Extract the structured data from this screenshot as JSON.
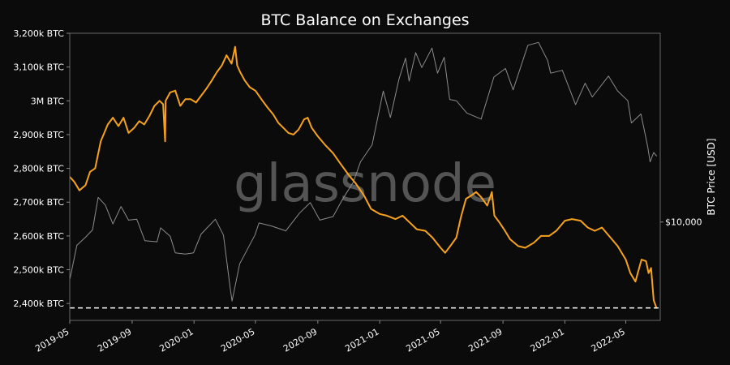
{
  "chart_data": {
    "type": "line",
    "title": "BTC Balance on Exchanges",
    "watermark": "glassnode",
    "xlabel": "",
    "ylabel_left": "",
    "ylabel_right": "BTC Price [USD]",
    "x_range": [
      "2019-05",
      "2022-07"
    ],
    "x_ticks": [
      "2019-05",
      "2019-09",
      "2020-01",
      "2020-05",
      "2020-09",
      "2021-01",
      "2021-05",
      "2021-09",
      "2022-01",
      "2022-05"
    ],
    "y_left": {
      "range": [
        2350000,
        3200000
      ],
      "ticks": [
        {
          "value": 2400000,
          "label": "2,400k BTC"
        },
        {
          "value": 2500000,
          "label": "2,500k BTC"
        },
        {
          "value": 2600000,
          "label": "2,600k BTC"
        },
        {
          "value": 2700000,
          "label": "2,700k BTC"
        },
        {
          "value": 2800000,
          "label": "2,800k BTC"
        },
        {
          "value": 2900000,
          "label": "2,900k BTC"
        },
        {
          "value": 3000000,
          "label": "3M BTC"
        },
        {
          "value": 3100000,
          "label": "3,100k BTC"
        },
        {
          "value": 3200000,
          "label": "3,200k BTC"
        }
      ]
    },
    "y_right": {
      "scale": "log",
      "range": [
        3500,
        75000
      ],
      "ticks": [
        {
          "value": 10000,
          "label": "$10,000"
        }
      ]
    },
    "grid": false,
    "reference_line": {
      "axis": "left",
      "value": 2387000,
      "style": "dashed",
      "color": "#ffffff"
    },
    "colors": {
      "background": "#0b0b0b",
      "balance": "#f7a21b",
      "price": "#8c8c8c",
      "text": "#ffffff",
      "axis": "#888888",
      "watermark": "#6e6e6e"
    },
    "series": [
      {
        "axis": "left",
        "color": "#f7a21b",
        "points": [
          [
            "2019-05-01",
            2775000
          ],
          [
            "2019-05-10",
            2760000
          ],
          [
            "2019-05-20",
            2735000
          ],
          [
            "2019-06-01",
            2750000
          ],
          [
            "2019-06-10",
            2790000
          ],
          [
            "2019-06-20",
            2800000
          ],
          [
            "2019-07-01",
            2880000
          ],
          [
            "2019-07-15",
            2930000
          ],
          [
            "2019-07-25",
            2950000
          ],
          [
            "2019-08-05",
            2925000
          ],
          [
            "2019-08-15",
            2950000
          ],
          [
            "2019-08-25",
            2905000
          ],
          [
            "2019-09-05",
            2920000
          ],
          [
            "2019-09-15",
            2940000
          ],
          [
            "2019-09-25",
            2930000
          ],
          [
            "2019-10-05",
            2955000
          ],
          [
            "2019-10-15",
            2985000
          ],
          [
            "2019-10-25",
            3000000
          ],
          [
            "2019-11-01",
            2990000
          ],
          [
            "2019-11-05",
            2880000
          ],
          [
            "2019-11-06",
            3000000
          ],
          [
            "2019-11-15",
            3025000
          ],
          [
            "2019-11-25",
            3030000
          ],
          [
            "2019-12-05",
            2985000
          ],
          [
            "2019-12-15",
            3005000
          ],
          [
            "2019-12-25",
            3005000
          ],
          [
            "2020-01-05",
            2995000
          ],
          [
            "2020-01-15",
            3015000
          ],
          [
            "2020-01-25",
            3035000
          ],
          [
            "2020-02-05",
            3060000
          ],
          [
            "2020-02-15",
            3085000
          ],
          [
            "2020-02-25",
            3105000
          ],
          [
            "2020-03-05",
            3135000
          ],
          [
            "2020-03-15",
            3110000
          ],
          [
            "2020-03-22",
            3160000
          ],
          [
            "2020-03-26",
            3105000
          ],
          [
            "2020-04-01",
            3085000
          ],
          [
            "2020-04-10",
            3060000
          ],
          [
            "2020-04-20",
            3040000
          ],
          [
            "2020-05-01",
            3030000
          ],
          [
            "2020-05-15",
            3000000
          ],
          [
            "2020-05-25",
            2980000
          ],
          [
            "2020-06-05",
            2960000
          ],
          [
            "2020-06-15",
            2935000
          ],
          [
            "2020-06-25",
            2920000
          ],
          [
            "2020-07-05",
            2905000
          ],
          [
            "2020-07-15",
            2900000
          ],
          [
            "2020-07-25",
            2915000
          ],
          [
            "2020-08-05",
            2945000
          ],
          [
            "2020-08-12",
            2950000
          ],
          [
            "2020-08-20",
            2920000
          ],
          [
            "2020-09-01",
            2895000
          ],
          [
            "2020-09-15",
            2870000
          ],
          [
            "2020-10-01",
            2845000
          ],
          [
            "2020-10-15",
            2815000
          ],
          [
            "2020-11-01",
            2780000
          ],
          [
            "2020-11-15",
            2755000
          ],
          [
            "2020-12-01",
            2720000
          ],
          [
            "2020-12-15",
            2680000
          ],
          [
            "2021-01-01",
            2665000
          ],
          [
            "2021-01-15",
            2660000
          ],
          [
            "2021-02-01",
            2650000
          ],
          [
            "2021-02-15",
            2660000
          ],
          [
            "2021-03-01",
            2640000
          ],
          [
            "2021-03-15",
            2620000
          ],
          [
            "2021-04-01",
            2615000
          ],
          [
            "2021-04-15",
            2595000
          ],
          [
            "2021-05-01",
            2565000
          ],
          [
            "2021-05-10",
            2550000
          ],
          [
            "2021-05-20",
            2570000
          ],
          [
            "2021-06-01",
            2595000
          ],
          [
            "2021-06-10",
            2655000
          ],
          [
            "2021-06-20",
            2710000
          ],
          [
            "2021-07-01",
            2720000
          ],
          [
            "2021-07-10",
            2730000
          ],
          [
            "2021-07-20",
            2715000
          ],
          [
            "2021-08-01",
            2690000
          ],
          [
            "2021-08-10",
            2730000
          ],
          [
            "2021-08-15",
            2660000
          ],
          [
            "2021-08-25",
            2640000
          ],
          [
            "2021-09-05",
            2615000
          ],
          [
            "2021-09-15",
            2590000
          ],
          [
            "2021-10-01",
            2570000
          ],
          [
            "2021-10-15",
            2565000
          ],
          [
            "2021-11-01",
            2580000
          ],
          [
            "2021-11-15",
            2600000
          ],
          [
            "2021-12-01",
            2600000
          ],
          [
            "2021-12-15",
            2615000
          ],
          [
            "2022-01-01",
            2645000
          ],
          [
            "2022-01-15",
            2650000
          ],
          [
            "2022-02-01",
            2645000
          ],
          [
            "2022-02-15",
            2625000
          ],
          [
            "2022-03-01",
            2615000
          ],
          [
            "2022-03-15",
            2625000
          ],
          [
            "2022-04-01",
            2595000
          ],
          [
            "2022-04-15",
            2570000
          ],
          [
            "2022-05-01",
            2530000
          ],
          [
            "2022-05-10",
            2490000
          ],
          [
            "2022-05-20",
            2465000
          ],
          [
            "2022-06-01",
            2530000
          ],
          [
            "2022-06-10",
            2525000
          ],
          [
            "2022-06-15",
            2490000
          ],
          [
            "2022-06-20",
            2505000
          ],
          [
            "2022-06-25",
            2410000
          ],
          [
            "2022-07-01",
            2385000
          ]
        ]
      },
      {
        "axis": "right",
        "color": "#8c8c8c",
        "points": [
          [
            "2019-05-01",
            5400
          ],
          [
            "2019-05-15",
            7800
          ],
          [
            "2019-06-01",
            8500
          ],
          [
            "2019-06-15",
            9200
          ],
          [
            "2019-06-26",
            13000
          ],
          [
            "2019-07-10",
            12000
          ],
          [
            "2019-07-25",
            9800
          ],
          [
            "2019-08-10",
            11800
          ],
          [
            "2019-08-25",
            10200
          ],
          [
            "2019-09-10",
            10300
          ],
          [
            "2019-09-26",
            8200
          ],
          [
            "2019-10-20",
            8100
          ],
          [
            "2019-10-27",
            9400
          ],
          [
            "2019-11-15",
            8600
          ],
          [
            "2019-11-25",
            7200
          ],
          [
            "2019-12-15",
            7100
          ],
          [
            "2019-12-31",
            7200
          ],
          [
            "2020-01-15",
            8800
          ],
          [
            "2020-02-12",
            10300
          ],
          [
            "2020-02-28",
            8700
          ],
          [
            "2020-03-12",
            5000
          ],
          [
            "2020-03-16",
            4300
          ],
          [
            "2020-03-31",
            6400
          ],
          [
            "2020-04-30",
            8700
          ],
          [
            "2020-05-08",
            9900
          ],
          [
            "2020-06-01",
            9600
          ],
          [
            "2020-06-30",
            9100
          ],
          [
            "2020-07-27",
            11000
          ],
          [
            "2020-08-17",
            12300
          ],
          [
            "2020-09-05",
            10200
          ],
          [
            "2020-10-01",
            10600
          ],
          [
            "2020-10-21",
            12900
          ],
          [
            "2020-11-10",
            15300
          ],
          [
            "2020-11-24",
            19000
          ],
          [
            "2020-12-17",
            22800
          ],
          [
            "2021-01-08",
            40500
          ],
          [
            "2021-01-22",
            30500
          ],
          [
            "2021-02-08",
            46000
          ],
          [
            "2021-02-21",
            57500
          ],
          [
            "2021-02-28",
            45000
          ],
          [
            "2021-03-13",
            61000
          ],
          [
            "2021-03-25",
            52000
          ],
          [
            "2021-04-14",
            64000
          ],
          [
            "2021-04-25",
            49000
          ],
          [
            "2021-05-08",
            58000
          ],
          [
            "2021-05-19",
            37000
          ],
          [
            "2021-06-01",
            36500
          ],
          [
            "2021-06-22",
            32000
          ],
          [
            "2021-07-20",
            30000
          ],
          [
            "2021-08-14",
            47000
          ],
          [
            "2021-09-06",
            51500
          ],
          [
            "2021-09-21",
            41000
          ],
          [
            "2021-10-20",
            66000
          ],
          [
            "2021-11-10",
            68000
          ],
          [
            "2021-11-28",
            56000
          ],
          [
            "2021-12-04",
            49000
          ],
          [
            "2021-12-27",
            50500
          ],
          [
            "2022-01-22",
            35000
          ],
          [
            "2022-02-10",
            44000
          ],
          [
            "2022-02-24",
            38000
          ],
          [
            "2022-03-28",
            47500
          ],
          [
            "2022-04-15",
            40500
          ],
          [
            "2022-05-05",
            36500
          ],
          [
            "2022-05-12",
            28800
          ],
          [
            "2022-05-31",
            31700
          ],
          [
            "2022-06-13",
            22500
          ],
          [
            "2022-06-18",
            19000
          ],
          [
            "2022-06-25",
            21000
          ],
          [
            "2022-07-01",
            20200
          ]
        ]
      }
    ]
  }
}
